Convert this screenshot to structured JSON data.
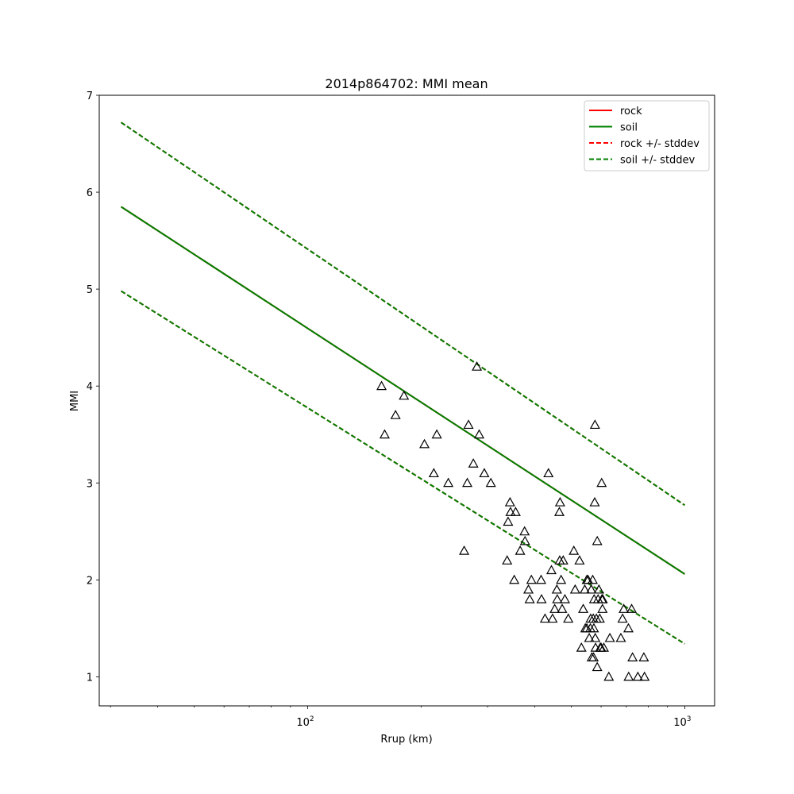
{
  "chart_data": {
    "type": "scatter",
    "title": "2014p864702: MMI mean",
    "xlabel": "Rrup (km)",
    "ylabel": "MMI",
    "xscale": "log",
    "xlim": [
      28,
      1200
    ],
    "ylim": [
      0.7,
      7.0
    ],
    "grid": false,
    "legend_position": "top-right",
    "x_ticks": [
      {
        "value": 100,
        "base": "10",
        "exp": "2"
      },
      {
        "value": 1000,
        "base": "10",
        "exp": "3"
      }
    ],
    "x_minor_ticks": [
      30,
      40,
      50,
      60,
      70,
      80,
      90,
      200,
      300,
      400,
      500,
      600,
      700,
      800,
      900
    ],
    "y_ticks": [
      1,
      2,
      3,
      4,
      5,
      6,
      7
    ],
    "series": [
      {
        "name": "rock",
        "style": "solid",
        "color": "#ff0000",
        "x": [
          32,
          1000
        ],
        "y": [
          5.85,
          2.06
        ]
      },
      {
        "name": "soil",
        "style": "solid",
        "color": "#008000",
        "x": [
          32,
          1000
        ],
        "y": [
          5.85,
          2.06
        ]
      },
      {
        "name": "rock +/- stddev",
        "style": "dashed",
        "color": "#ff0000",
        "bands": [
          {
            "x": [
              32,
              1000
            ],
            "y": [
              6.72,
              2.77
            ]
          },
          {
            "x": [
              32,
              1000
            ],
            "y": [
              4.98,
              1.34
            ]
          }
        ]
      },
      {
        "name": "soil +/- stddev",
        "style": "dashed",
        "color": "#008000",
        "bands": [
          {
            "x": [
              32,
              1000
            ],
            "y": [
              6.72,
              2.77
            ]
          },
          {
            "x": [
              32,
              1000
            ],
            "y": [
              4.98,
              1.34
            ]
          }
        ]
      }
    ],
    "observations": {
      "marker": "triangle",
      "color": "#000000",
      "points": [
        [
          157,
          4.0
        ],
        [
          160,
          3.5
        ],
        [
          171,
          3.7
        ],
        [
          180,
          3.9
        ],
        [
          204,
          3.4
        ],
        [
          216,
          3.1
        ],
        [
          220,
          3.5
        ],
        [
          236,
          3.0
        ],
        [
          260,
          2.3
        ],
        [
          265,
          3.0
        ],
        [
          267,
          3.6
        ],
        [
          275,
          3.2
        ],
        [
          281,
          4.2
        ],
        [
          285,
          3.5
        ],
        [
          294,
          3.1
        ],
        [
          306,
          3.0
        ],
        [
          338,
          2.2
        ],
        [
          340,
          2.6
        ],
        [
          344,
          2.8
        ],
        [
          345,
          2.7
        ],
        [
          353,
          2.0
        ],
        [
          356,
          2.7
        ],
        [
          366,
          2.3
        ],
        [
          376,
          2.5
        ],
        [
          377,
          2.4
        ],
        [
          385,
          1.9
        ],
        [
          388,
          1.8
        ],
        [
          392,
          2.0
        ],
        [
          416,
          2.0
        ],
        [
          417,
          1.8
        ],
        [
          426,
          1.6
        ],
        [
          435,
          3.1
        ],
        [
          443,
          2.1
        ],
        [
          446,
          1.6
        ],
        [
          452,
          1.7
        ],
        [
          458,
          1.9
        ],
        [
          459,
          1.8
        ],
        [
          465,
          2.7
        ],
        [
          466,
          2.2
        ],
        [
          467,
          2.8
        ],
        [
          470,
          2.0
        ],
        [
          473,
          1.7
        ],
        [
          476,
          2.2
        ],
        [
          481,
          1.8
        ],
        [
          491,
          1.6
        ],
        [
          508,
          2.3
        ],
        [
          512,
          1.9
        ],
        [
          526,
          2.2
        ],
        [
          532,
          1.3
        ],
        [
          538,
          1.7
        ],
        [
          543,
          1.9
        ],
        [
          545,
          1.5
        ],
        [
          550,
          1.5
        ],
        [
          550,
          2.0
        ],
        [
          554,
          2.0
        ],
        [
          558,
          1.4
        ],
        [
          562,
          1.5
        ],
        [
          563,
          1.6
        ],
        [
          565,
          1.9
        ],
        [
          567,
          1.2
        ],
        [
          570,
          2.0
        ],
        [
          572,
          1.6
        ],
        [
          573,
          1.2
        ],
        [
          574,
          1.5
        ],
        [
          575,
          1.8
        ],
        [
          577,
          2.8
        ],
        [
          578,
          3.6
        ],
        [
          579,
          1.4
        ],
        [
          580,
          1.3
        ],
        [
          583,
          1.6
        ],
        [
          586,
          2.4
        ],
        [
          586,
          1.1
        ],
        [
          589,
          1.8
        ],
        [
          592,
          1.9
        ],
        [
          595,
          1.6
        ],
        [
          597,
          1.3
        ],
        [
          600,
          1.3
        ],
        [
          602,
          3.0
        ],
        [
          603,
          1.8
        ],
        [
          605,
          1.7
        ],
        [
          606,
          1.8
        ],
        [
          610,
          1.3
        ],
        [
          629,
          1.0
        ],
        [
          633,
          1.4
        ],
        [
          677,
          1.4
        ],
        [
          684,
          1.6
        ],
        [
          689,
          1.7
        ],
        [
          709,
          1.5
        ],
        [
          710,
          1.0
        ],
        [
          723,
          1.7
        ],
        [
          727,
          1.2
        ],
        [
          751,
          1.0
        ],
        [
          779,
          1.2
        ],
        [
          782,
          1.0
        ]
      ]
    }
  }
}
